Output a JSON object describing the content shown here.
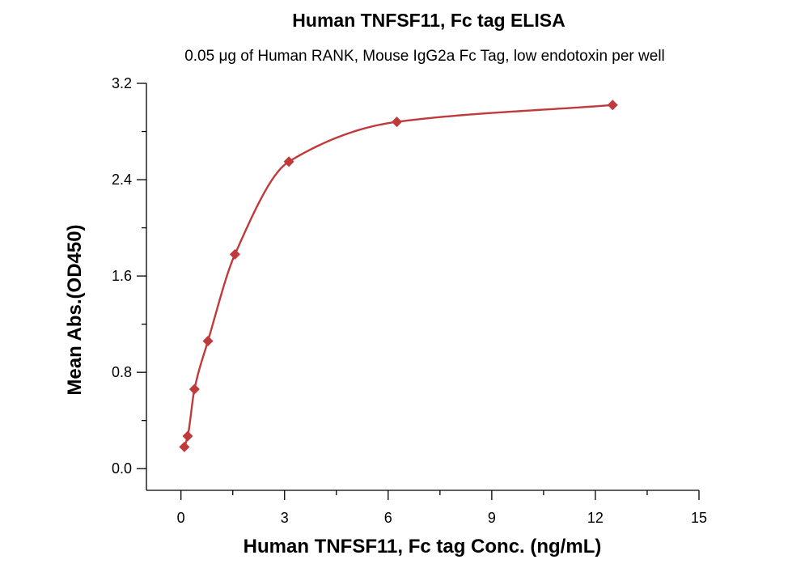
{
  "chart_data": {
    "type": "scatter",
    "title": "Human TNFSF11, Fc tag ELISA",
    "subtitle": "0.05 μg of Human RANK, Mouse IgG2a Fc Tag, low endotoxin per well",
    "xlabel": "Human TNFSF11, Fc tag Conc. (ng/mL)",
    "ylabel": "Mean Abs.(OD450)",
    "xlim": [
      -1,
      15
    ],
    "ylim": [
      -0.18,
      3.2
    ],
    "x_ticks": [
      0,
      3,
      6,
      9,
      12,
      15
    ],
    "x_tick_labels": [
      "0",
      "3",
      "6",
      "9",
      "12",
      "15"
    ],
    "y_ticks": [
      0.0,
      0.8,
      1.6,
      2.4,
      3.2
    ],
    "y_tick_labels": [
      "0.0",
      "0.8",
      "1.6",
      "2.4",
      "3.2"
    ],
    "grid": false,
    "marker_color": "#c0393b",
    "curve_color": "#c0393b",
    "series": [
      {
        "marker": "diamond",
        "x": [
          0.098,
          0.195,
          0.391,
          0.781,
          1.563,
          3.125,
          6.25,
          12.5
        ],
        "y": [
          0.18,
          0.27,
          0.66,
          1.06,
          1.78,
          2.55,
          2.88,
          3.02
        ]
      }
    ]
  }
}
